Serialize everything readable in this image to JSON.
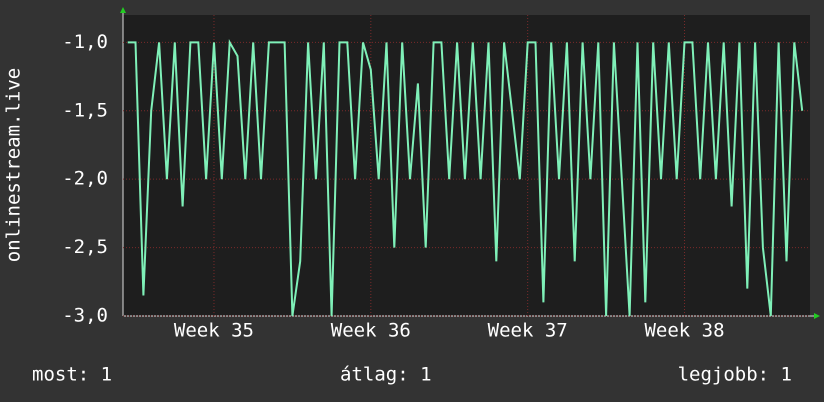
{
  "chart_data": {
    "type": "line",
    "y_label": "onlinestream.live",
    "x": [
      34.45,
      34.5,
      34.55,
      34.6,
      34.65,
      34.7,
      34.75,
      34.8,
      34.85,
      34.9,
      34.95,
      35,
      35.05,
      35.1,
      35.15,
      35.2,
      35.25,
      35.3,
      35.35,
      35.4,
      35.45,
      35.5,
      35.55,
      35.6,
      35.65,
      35.7,
      35.75,
      35.8,
      35.85,
      35.9,
      35.95,
      36,
      36.05,
      36.1,
      36.15,
      36.2,
      36.25,
      36.3,
      36.35,
      36.4,
      36.45,
      36.5,
      36.55,
      36.6,
      36.65,
      36.7,
      36.75,
      36.8,
      36.85,
      36.9,
      36.95,
      37,
      37.05,
      37.1,
      37.15,
      37.2,
      37.25,
      37.3,
      37.35,
      37.4,
      37.45,
      37.5,
      37.55,
      37.6,
      37.65,
      37.7,
      37.75,
      37.8,
      37.85,
      37.9,
      37.95,
      38,
      38.05,
      38.1,
      38.15,
      38.2,
      38.25,
      38.3,
      38.35,
      38.4,
      38.45,
      38.5,
      38.55,
      38.6,
      38.65,
      38.7,
      38.75
    ],
    "series": [
      {
        "color": "#7ff0b8",
        "values": [
          -1,
          -1,
          -2.85,
          -1.5,
          -1,
          -2,
          -1,
          -2.2,
          -1,
          -1,
          -2,
          -1,
          -2,
          -1,
          -1.1,
          -2,
          -1,
          -2,
          -1,
          -1,
          -1,
          -3,
          -2.6,
          -1,
          -2,
          -1,
          -3,
          -1,
          -1,
          -2,
          -1,
          -1.2,
          -2,
          -1,
          -2.5,
          -1,
          -2,
          -1.3,
          -2.5,
          -1,
          -1,
          -2,
          -1,
          -2,
          -1,
          -2,
          -1,
          -2.6,
          -1,
          -1.5,
          -2,
          -1,
          -1,
          -2.9,
          -1,
          -2,
          -1,
          -2.6,
          -1,
          -2,
          -1,
          -3,
          -1,
          -2,
          -3,
          -1,
          -2.9,
          -1,
          -2,
          -1,
          -2,
          -1,
          -1,
          -2,
          -1,
          -2,
          -1,
          -2.2,
          -1,
          -2.8,
          -1,
          -2.5,
          -3,
          -1,
          -2.6,
          -1,
          -1.5
        ]
      }
    ],
    "xlim": [
      34.42,
      38.8
    ],
    "xticks": [
      {
        "value": 35,
        "label": "Week 35"
      },
      {
        "value": 36,
        "label": "Week 36"
      },
      {
        "value": 37,
        "label": "Week 37"
      },
      {
        "value": 38,
        "label": "Week 38"
      }
    ],
    "ylim": [
      -3.0,
      -0.8
    ],
    "yticks": [
      {
        "value": -3.0,
        "label": "-3,0"
      },
      {
        "value": -2.5,
        "label": "-2,5"
      },
      {
        "value": -2.0,
        "label": "-2,0"
      },
      {
        "value": -1.5,
        "label": "-1,5"
      },
      {
        "value": -1.0,
        "label": "-1,0"
      }
    ],
    "grid": true,
    "footer": {
      "current": "most: 1",
      "average": "átlag: 1",
      "best": "legjobb: 1"
    }
  }
}
